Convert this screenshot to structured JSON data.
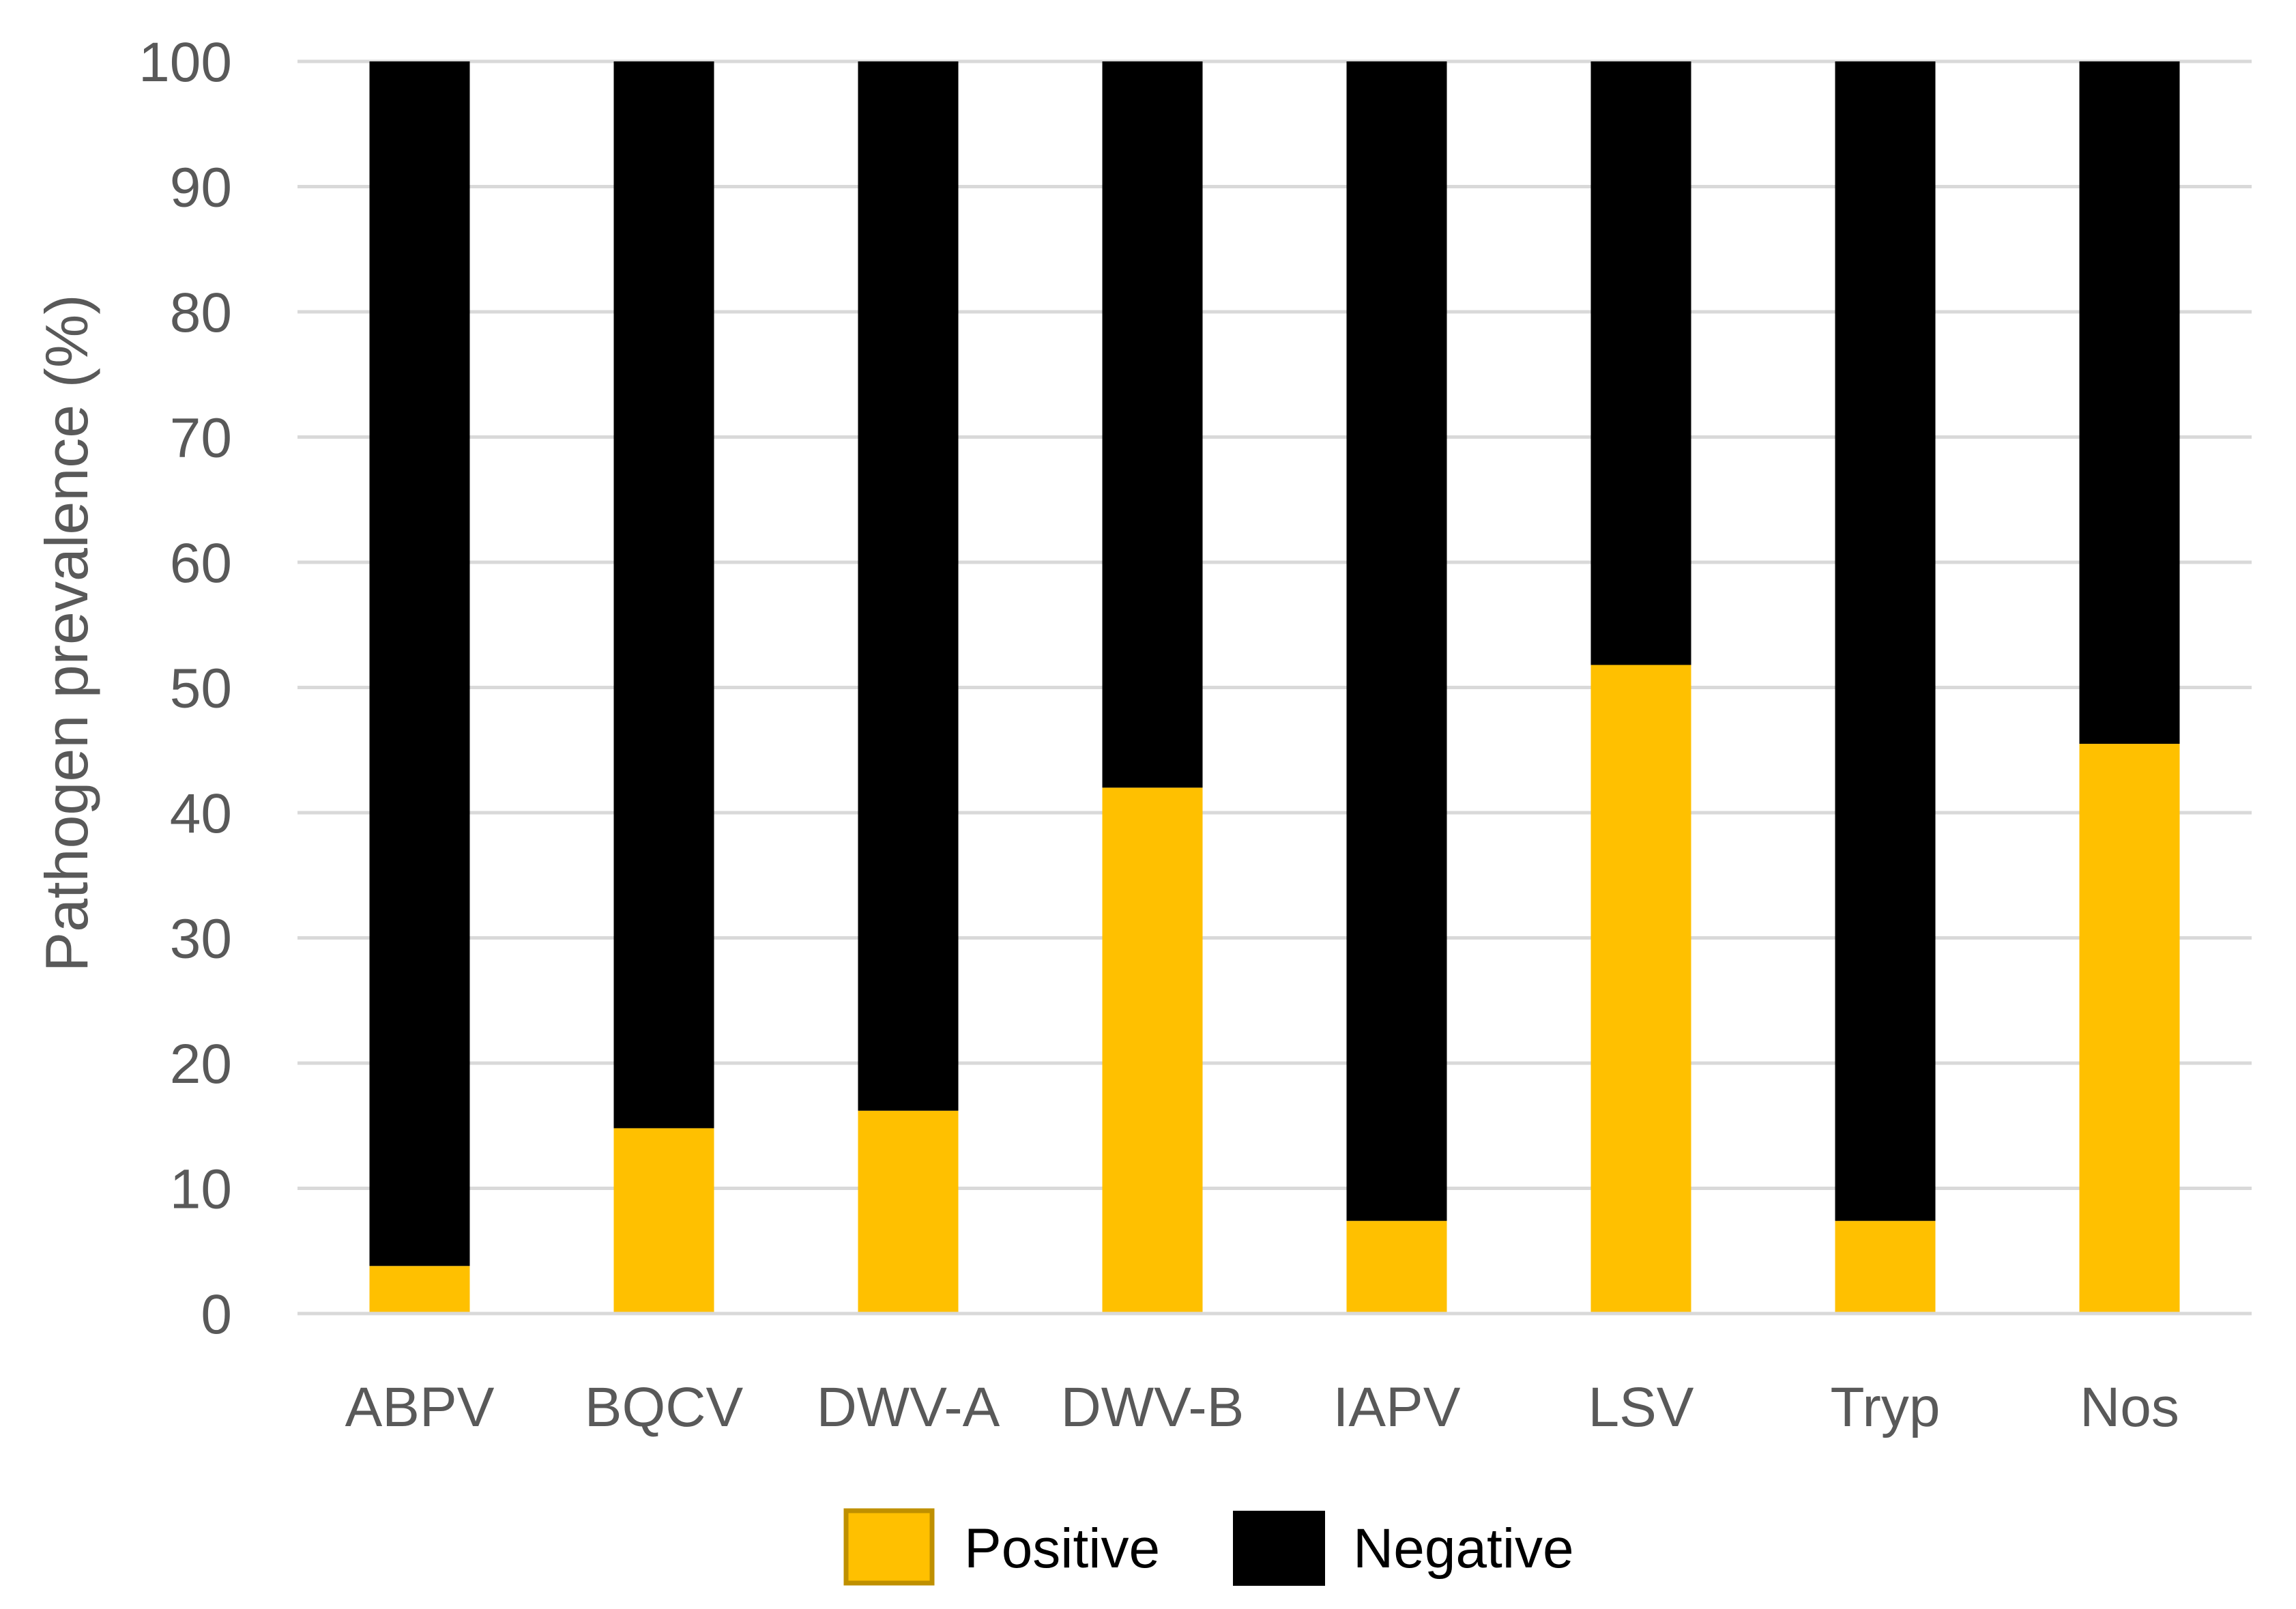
{
  "chart_data": {
    "type": "bar",
    "stacked": true,
    "categories": [
      "ABPV",
      "BQCV",
      "DWV-A",
      "DWV-B",
      "IAPV",
      "LSV",
      "Tryp",
      "Nos"
    ],
    "series": [
      {
        "name": "Positive",
        "color": "#FFC000",
        "values": [
          3.8,
          14.8,
          16.2,
          42.0,
          7.4,
          51.8,
          7.4,
          45.5
        ]
      },
      {
        "name": "Negative",
        "color": "#000000",
        "values": [
          96.2,
          85.2,
          83.8,
          58.0,
          92.6,
          48.2,
          92.6,
          54.5
        ]
      }
    ],
    "title": "",
    "xlabel": "",
    "ylabel": "Pathogen prevalence  (%)",
    "ylim": [
      0,
      100
    ],
    "yticks": [
      0,
      10,
      20,
      30,
      40,
      50,
      60,
      70,
      80,
      90,
      100
    ],
    "grid": true,
    "legend_position": "bottom-center",
    "gridline_color": "#D9D9D9",
    "legend_border_color": "#BF9000"
  }
}
